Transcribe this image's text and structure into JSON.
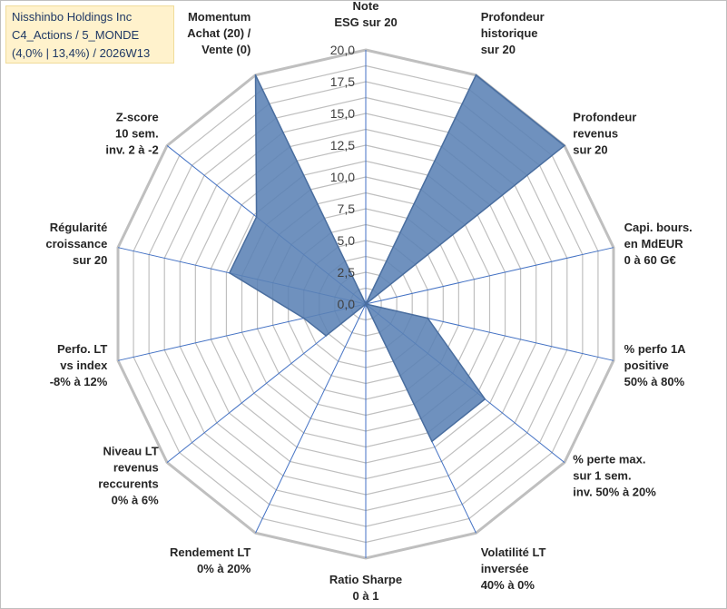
{
  "title_box": {
    "line1": "Nisshinbo Holdings Inc",
    "line2": "C4_Actions / 5_MONDE",
    "line3": "(4,0% | 13,4%) / 2026W13"
  },
  "colors": {
    "fill": "#5b82b5",
    "stroke": "#4a6e9f",
    "grid": "#bfbfbf",
    "spoke": "#4472c4",
    "title_bg": "#fff2cc",
    "title_text": "#1f3864"
  },
  "chart_data": {
    "type": "radar",
    "title": "Nisshinbo Holdings Inc",
    "rmin": 0,
    "rmax": 20,
    "ticks": [
      {
        "value": 0,
        "label": "0,0"
      },
      {
        "value": 2.5,
        "label": "2,5"
      },
      {
        "value": 5,
        "label": "5,0"
      },
      {
        "value": 7.5,
        "label": "7,5"
      },
      {
        "value": 10,
        "label": "10,0"
      },
      {
        "value": 12.5,
        "label": "12,5"
      },
      {
        "value": 15,
        "label": "15,0"
      },
      {
        "value": 17.5,
        "label": "17,5"
      },
      {
        "value": 20,
        "label": "20,0"
      }
    ],
    "categories": [
      [
        "Note",
        "ESG sur 20"
      ],
      [
        "Profondeur",
        "historique",
        "sur 20"
      ],
      [
        "Profondeur",
        "revenus",
        "sur 20"
      ],
      [
        "Capi. bours.",
        "en MdEUR",
        "0 à 60 G€"
      ],
      [
        "% perfo 1A",
        "positive",
        "50% à 80%"
      ],
      [
        "% perte max.",
        "sur 1 sem.",
        "inv. 50% à 20%"
      ],
      [
        "Volatilité LT",
        "inversée",
        "40% à 0%"
      ],
      [
        "Ratio Sharpe",
        "0 à 1"
      ],
      [
        "Rendement LT",
        "0% à 20%"
      ],
      [
        "Niveau LT",
        "revenus",
        "reccurents",
        "0% à 6%"
      ],
      [
        "Perfo. LT",
        "vs index",
        "-8% à 12%"
      ],
      [
        "Régularité",
        "croissance",
        "sur 20"
      ],
      [
        "Z-score",
        "10 sem.",
        "inv. 2 à -2"
      ],
      [
        "Momentum",
        "Achat (20) /",
        "Vente (0)"
      ]
    ],
    "series": [
      {
        "name": "Nisshinbo Holdings Inc",
        "values": [
          0,
          20,
          20,
          0,
          5,
          12,
          12,
          0,
          0,
          4,
          5,
          11,
          11,
          20
        ]
      }
    ]
  }
}
